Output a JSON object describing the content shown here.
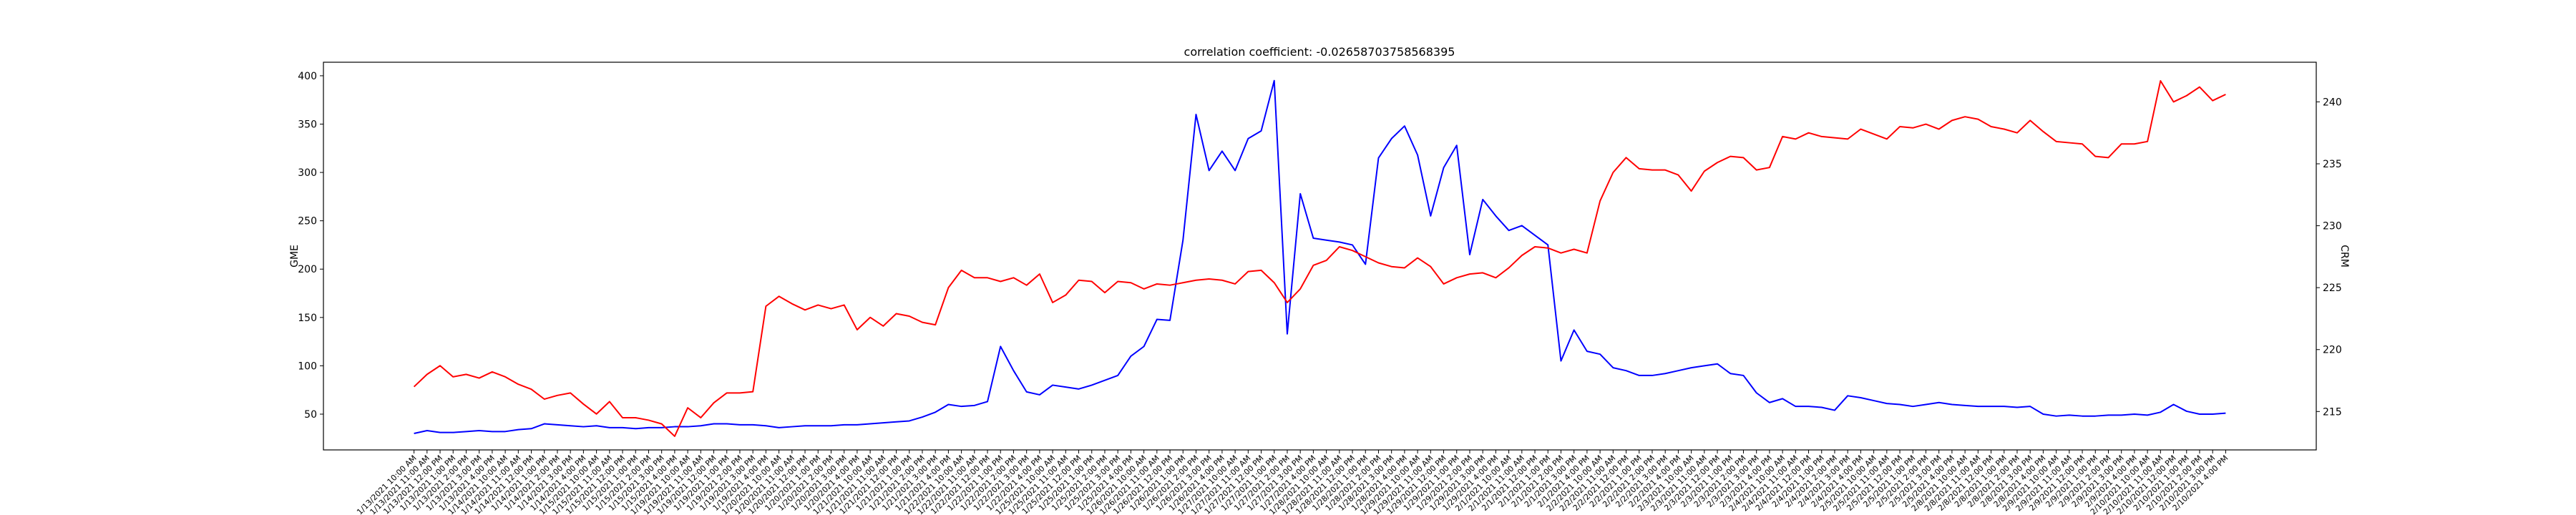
{
  "chart_data": {
    "type": "line",
    "title": "correlation coefficient: -0.02658703758568395",
    "ylabel": "GME",
    "y2label": "CRM",
    "categories": [
      "1/13/2021 10:00 AM",
      "1/13/2021 11:00 AM",
      "1/13/2021 12:00 PM",
      "1/13/2021 1:00 PM",
      "1/13/2021 2:00 PM",
      "1/13/2021 3:00 PM",
      "1/13/2021 4:00 PM",
      "1/14/2021 10:00 AM",
      "1/14/2021 11:00 AM",
      "1/14/2021 12:00 PM",
      "1/14/2021 1:00 PM",
      "1/14/2021 2:00 PM",
      "1/14/2021 3:00 PM",
      "1/14/2021 4:00 PM",
      "1/15/2021 10:00 AM",
      "1/15/2021 11:00 AM",
      "1/15/2021 12:00 PM",
      "1/15/2021 1:00 PM",
      "1/15/2021 2:00 PM",
      "1/15/2021 3:00 PM",
      "1/15/2021 4:00 PM",
      "1/19/2021 10:00 AM",
      "1/19/2021 11:00 AM",
      "1/19/2021 12:00 PM",
      "1/19/2021 1:00 PM",
      "1/19/2021 2:00 PM",
      "1/19/2021 3:00 PM",
      "1/19/2021 4:00 PM",
      "1/20/2021 10:00 AM",
      "1/20/2021 11:00 AM",
      "1/20/2021 12:00 PM",
      "1/20/2021 1:00 PM",
      "1/20/2021 2:00 PM",
      "1/20/2021 3:00 PM",
      "1/20/2021 4:00 PM",
      "1/21/2021 10:00 AM",
      "1/21/2021 11:00 AM",
      "1/21/2021 12:00 PM",
      "1/21/2021 1:00 PM",
      "1/21/2021 2:00 PM",
      "1/21/2021 3:00 PM",
      "1/21/2021 4:00 PM",
      "1/22/2021 10:00 AM",
      "1/22/2021 11:00 AM",
      "1/22/2021 12:00 PM",
      "1/22/2021 1:00 PM",
      "1/22/2021 2:00 PM",
      "1/22/2021 3:00 PM",
      "1/22/2021 4:00 PM",
      "1/25/2021 10:00 AM",
      "1/25/2021 11:00 AM",
      "1/25/2021 12:00 PM",
      "1/25/2021 1:00 PM",
      "1/25/2021 2:00 PM",
      "1/25/2021 3:00 PM",
      "1/25/2021 4:00 PM",
      "1/26/2021 10:00 AM",
      "1/26/2021 11:00 AM",
      "1/26/2021 12:00 PM",
      "1/26/2021 1:00 PM",
      "1/26/2021 2:00 PM",
      "1/26/2021 3:00 PM",
      "1/26/2021 4:00 PM",
      "1/27/2021 10:00 AM",
      "1/27/2021 11:00 AM",
      "1/27/2021 12:00 PM",
      "1/27/2021 1:00 PM",
      "1/27/2021 2:00 PM",
      "1/27/2021 3:00 PM",
      "1/27/2021 4:00 PM",
      "1/28/2021 10:00 AM",
      "1/28/2021 11:00 AM",
      "1/28/2021 12:00 PM",
      "1/28/2021 1:00 PM",
      "1/28/2021 2:00 PM",
      "1/28/2021 3:00 PM",
      "1/28/2021 4:00 PM",
      "1/29/2021 10:00 AM",
      "1/29/2021 11:00 AM",
      "1/29/2021 12:00 PM",
      "1/29/2021 1:00 PM",
      "1/29/2021 2:00 PM",
      "1/29/2021 3:00 PM",
      "1/29/2021 4:00 PM",
      "2/1/2021 10:00 AM",
      "2/1/2021 11:00 AM",
      "2/1/2021 12:00 PM",
      "2/1/2021 1:00 PM",
      "2/1/2021 2:00 PM",
      "2/1/2021 3:00 PM",
      "2/1/2021 4:00 PM",
      "2/2/2021 10:00 AM",
      "2/2/2021 11:00 AM",
      "2/2/2021 12:00 PM",
      "2/2/2021 1:00 PM",
      "2/2/2021 2:00 PM",
      "2/2/2021 3:00 PM",
      "2/2/2021 4:00 PM",
      "2/3/2021 10:00 AM",
      "2/3/2021 11:00 AM",
      "2/3/2021 12:00 PM",
      "2/3/2021 1:00 PM",
      "2/3/2021 2:00 PM",
      "2/3/2021 3:00 PM",
      "2/3/2021 4:00 PM",
      "2/4/2021 10:00 AM",
      "2/4/2021 11:00 AM",
      "2/4/2021 12:00 PM",
      "2/4/2021 1:00 PM",
      "2/4/2021 2:00 PM",
      "2/4/2021 3:00 PM",
      "2/4/2021 4:00 PM",
      "2/5/2021 10:00 AM",
      "2/5/2021 11:00 AM",
      "2/5/2021 12:00 PM",
      "2/5/2021 1:00 PM",
      "2/5/2021 2:00 PM",
      "2/5/2021 3:00 PM",
      "2/5/2021 4:00 PM",
      "2/8/2021 10:00 AM",
      "2/8/2021 11:00 AM",
      "2/8/2021 12:00 PM",
      "2/8/2021 1:00 PM",
      "2/8/2021 2:00 PM",
      "2/8/2021 3:00 PM",
      "2/8/2021 4:00 PM",
      "2/9/2021 10:00 AM",
      "2/9/2021 11:00 AM",
      "2/9/2021 12:00 PM",
      "2/9/2021 1:00 PM",
      "2/9/2021 2:00 PM",
      "2/9/2021 3:00 PM",
      "2/9/2021 4:00 PM",
      "2/10/2021 10:00 AM",
      "2/10/2021 11:00 AM",
      "2/10/2021 12:00 PM",
      "2/10/2021 1:00 PM",
      "2/10/2021 2:00 PM",
      "2/10/2021 3:00 PM",
      "2/10/2021 4:00 PM"
    ],
    "series": [
      {
        "name": "GME",
        "color": "#0000ff",
        "values": [
          30,
          33,
          31,
          31,
          32,
          33,
          32,
          32,
          34,
          35,
          40,
          39,
          38,
          37,
          38,
          36,
          36,
          35,
          36,
          36,
          37,
          37,
          38,
          40,
          40,
          39,
          39,
          38,
          36,
          37,
          38,
          38,
          38,
          39,
          39,
          40,
          41,
          42,
          43,
          47,
          52,
          60,
          58,
          59,
          63,
          120,
          95,
          73,
          70,
          80,
          78,
          76,
          80,
          85,
          90,
          110,
          120,
          148,
          147,
          230,
          360,
          302,
          322,
          302,
          335,
          343,
          395,
          133,
          278,
          232,
          230,
          228,
          225,
          205,
          315,
          335,
          348,
          318,
          255,
          305,
          328,
          215,
          272,
          255,
          240,
          245,
          235,
          225,
          105,
          137,
          115,
          112,
          98,
          95,
          90,
          90,
          92,
          95,
          98,
          100,
          102,
          92,
          90,
          72,
          62,
          66,
          58,
          58,
          57,
          54,
          69,
          67,
          64,
          61,
          60,
          58,
          60,
          62,
          60,
          59,
          58,
          58,
          58,
          57,
          58,
          50,
          48,
          49,
          48,
          48,
          49,
          49,
          50,
          49,
          52,
          60,
          53,
          50,
          50,
          51
        ]
      },
      {
        "name": "CRM",
        "color": "#ff0000",
        "axis": "y2",
        "values": [
          217,
          218,
          218.7,
          217.8,
          218,
          217.7,
          218.2,
          217.8,
          217.2,
          216.8,
          216,
          216.3,
          216.5,
          215.6,
          214.8,
          215.8,
          214.5,
          214.5,
          214.3,
          214,
          213,
          215.3,
          214.5,
          215.7,
          216.5,
          216.5,
          216.6,
          223.5,
          224.3,
          223.7,
          223.2,
          223.6,
          223.3,
          223.6,
          221.6,
          222.6,
          221.9,
          222.9,
          222.7,
          222.2,
          222,
          225,
          226.4,
          225.8,
          225.8,
          225.5,
          225.8,
          225.2,
          226.1,
          223.8,
          224.4,
          225.6,
          225.5,
          224.6,
          225.5,
          225.4,
          224.9,
          225.3,
          225.2,
          225.4,
          225.6,
          225.7,
          225.6,
          225.3,
          226.3,
          226.4,
          225.4,
          223.8,
          224.9,
          226.8,
          227.2,
          228.3,
          228,
          227.5,
          227,
          226.7,
          226.6,
          227.4,
          226.7,
          225.3,
          225.8,
          226.1,
          226.2,
          225.8,
          226.6,
          227.6,
          228.3,
          228.2,
          227.8,
          228.1,
          227.8,
          232,
          234.3,
          235.5,
          234.6,
          234.5,
          234.5,
          234.1,
          232.8,
          234.4,
          235.1,
          235.6,
          235.5,
          234.5,
          234.7,
          237.2,
          237,
          237.5,
          237.2,
          237.1,
          237,
          237.8,
          237.4,
          237,
          238,
          237.9,
          238.2,
          237.8,
          238.5,
          238.8,
          238.6,
          238,
          237.8,
          237.5,
          238.5,
          237.6,
          236.8,
          236.7,
          236.6,
          235.6,
          235.5,
          236.6,
          236.6,
          236.8,
          241.7,
          240,
          240.5,
          241.2,
          240.1,
          240.6
        ]
      }
    ],
    "ylim": [
      13,
      414
    ],
    "yticks": [
      50,
      100,
      150,
      200,
      250,
      300,
      350,
      400
    ],
    "y2lim": [
      211.9,
      243.2
    ],
    "y2ticks": [
      215,
      220,
      225,
      230,
      235,
      240
    ]
  }
}
